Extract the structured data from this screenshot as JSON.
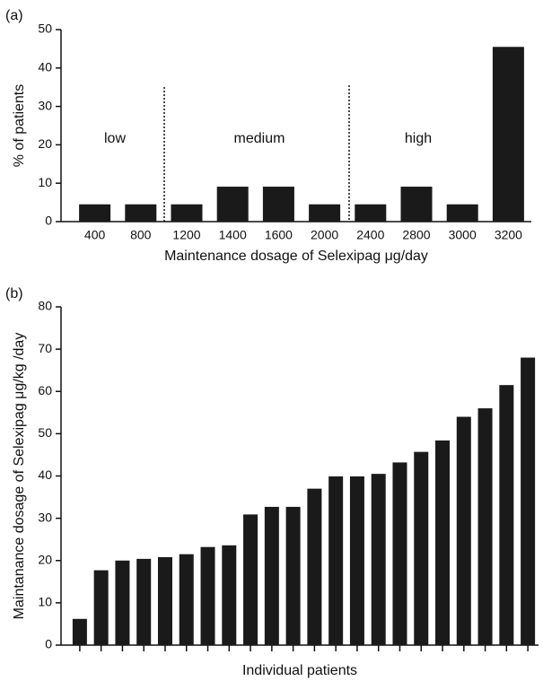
{
  "chart_data": [
    {
      "type": "bar",
      "panel": "(a)",
      "color": "#1a1a1a",
      "x_label": "Maintenance dosage of Selexipag μg/day",
      "y_label": "% of patients",
      "categories": [
        "400",
        "800",
        "1200",
        "1400",
        "1600",
        "2000",
        "2400",
        "2800",
        "3000",
        "3200"
      ],
      "values": [
        4.5,
        4.5,
        4.5,
        9.1,
        9.1,
        4.5,
        4.5,
        9.1,
        4.5,
        45.5
      ],
      "ylim": [
        0,
        50
      ],
      "yticks": [
        0,
        10,
        20,
        30,
        40,
        50
      ],
      "annotations": [
        "low",
        "medium",
        "high"
      ]
    },
    {
      "type": "bar",
      "panel": "(b)",
      "color": "#1a1a1a",
      "x_label": "Individual patients",
      "y_label": "Maintanance dosage of  Selexipag μg/kg /day",
      "categories": [
        null,
        null,
        null,
        null,
        null,
        null,
        null,
        null,
        null,
        null,
        null,
        null,
        null,
        null,
        null,
        null,
        null,
        null,
        null,
        null,
        null,
        null
      ],
      "values": [
        6.2,
        17.7,
        20,
        20.4,
        20.8,
        21.5,
        23.2,
        23.6,
        30.9,
        32.7,
        32.7,
        37,
        39.9,
        39.9,
        40.5,
        43.2,
        45.7,
        48.4,
        54,
        56,
        61.5,
        68
      ],
      "ylim": [
        0,
        80
      ],
      "yticks": [
        0,
        10,
        20,
        30,
        40,
        50,
        60,
        70,
        80
      ]
    }
  ]
}
